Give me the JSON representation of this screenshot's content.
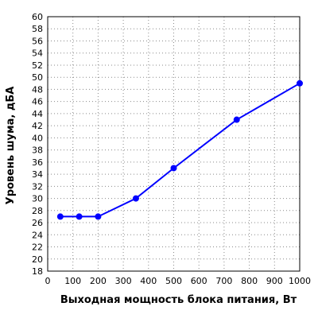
{
  "chart_data": {
    "type": "line",
    "title": "",
    "xlabel": "Выходная мощность блока питания, Вт",
    "ylabel": "Уровень шума, дБА",
    "xlim": [
      0,
      1000
    ],
    "ylim": [
      18,
      60
    ],
    "x_ticks": [
      0,
      100,
      200,
      300,
      400,
      500,
      600,
      700,
      800,
      900,
      1000
    ],
    "y_ticks": [
      18,
      20,
      22,
      24,
      26,
      28,
      30,
      32,
      34,
      36,
      38,
      40,
      42,
      44,
      46,
      48,
      50,
      52,
      54,
      56,
      58,
      60
    ],
    "grid": true,
    "legend": "none",
    "series": [
      {
        "color": "#0000ff",
        "x": [
          50,
          125,
          200,
          350,
          500,
          750,
          1000
        ],
        "y": [
          27,
          27,
          27,
          30,
          35,
          43,
          49
        ]
      }
    ]
  }
}
